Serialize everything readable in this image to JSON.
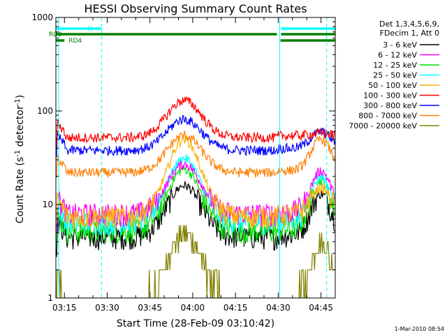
{
  "chart_data": {
    "type": "line",
    "title": "HESSI Observing Summary Count Rates",
    "xlabel": "Start Time (28-Feb-09 03:10:42)",
    "ylabel_main": "Count Rate (s",
    "ylabel_sup1": "-1",
    "ylabel_mid": " detector",
    "ylabel_sup2": "-1",
    "ylabel_end": ")",
    "y_scale": "log",
    "ylim": [
      1,
      1000
    ],
    "xlim_min": [
      192,
      290
    ],
    "x_ticks": [
      {
        "min": 195,
        "label": "03:15"
      },
      {
        "min": 210,
        "label": "03:30"
      },
      {
        "min": 225,
        "label": "03:45"
      },
      {
        "min": 240,
        "label": "04:00"
      },
      {
        "min": 255,
        "label": "04:15"
      },
      {
        "min": 270,
        "label": "04:30"
      },
      {
        "min": 285,
        "label": "04:45"
      }
    ],
    "y_ticks": [
      {
        "value": 1,
        "label": "1"
      },
      {
        "value": 10,
        "label": "10"
      },
      {
        "value": 100,
        "label": "100"
      },
      {
        "value": 1000,
        "label": "1000"
      }
    ],
    "legend_header": [
      "Det 1,3,4,5,6,9,",
      "FDecim 1, Att 0"
    ],
    "legend_placement": "right",
    "series": [
      {
        "name": "3 - 6 keV",
        "color": "#000000",
        "day": 4.5,
        "peak": 16,
        "p2": 13
      },
      {
        "name": "6 - 12 keV",
        "color": "#ff00ff",
        "day": 8.0,
        "peak": 27,
        "p2": 23
      },
      {
        "name": "12 - 25 keV",
        "color": "#00e000",
        "day": 5.2,
        "peak": 24,
        "p2": 18
      },
      {
        "name": "25 - 50 keV",
        "color": "#00ffff",
        "day": 6.5,
        "peak": 31,
        "p2": 20
      },
      {
        "name": "50 - 100 keV",
        "color": "#ffb000",
        "day": 7.5,
        "peak": 50,
        "p2": 15
      },
      {
        "name": "100 - 300 keV",
        "color": "#ff0000",
        "day": 52,
        "peak": 130,
        "p2": 58
      },
      {
        "name": "300 - 800 keV",
        "color": "#0000ff",
        "day": 38,
        "peak": 82,
        "p2": 60
      },
      {
        "name": "800 - 7000 keV",
        "color": "#ff8000",
        "day": 22,
        "peak": 55,
        "p2": 50
      },
      {
        "name": "7000 - 20000 keV",
        "color": "#808000",
        "day": 1.0,
        "peak": 5,
        "p2": 4
      }
    ],
    "vertical_markers_min": [
      193,
      208,
      270.5,
      287
    ],
    "flags": [
      {
        "label": "N",
        "color": "#00ffff",
        "segments": [
          [
            192,
            208
          ],
          [
            271,
            290
          ]
        ]
      },
      {
        "label": "RD0",
        "color": "#008000",
        "segments": [
          [
            192,
            269.5
          ],
          [
            271,
            290
          ]
        ]
      },
      {
        "label": "RD4",
        "color": "#008000",
        "segments": [
          [
            192,
            195
          ],
          [
            270.8,
            290
          ]
        ]
      }
    ]
  },
  "footer_date": "1-Mar-2010 08:54"
}
